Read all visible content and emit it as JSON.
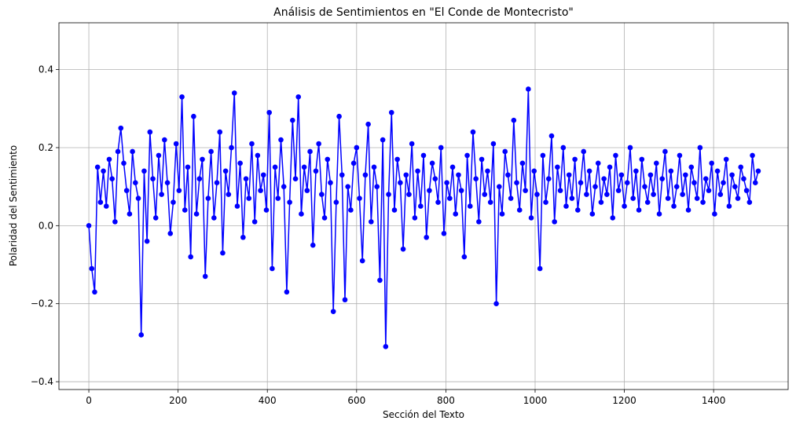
{
  "chart_data": {
    "type": "line",
    "title": "Análisis de Sentimientos en \"El Conde de Montecristo\"",
    "xlabel": "Sección del Texto",
    "ylabel": "Polaridad del Sentimiento",
    "xlim": [
      -67,
      1567
    ],
    "ylim": [
      -0.42,
      0.52
    ],
    "xticks": [
      0,
      200,
      400,
      600,
      800,
      1000,
      1200,
      1400
    ],
    "yticks": [
      -0.4,
      -0.2,
      0.0,
      0.2,
      0.4
    ],
    "ytick_labels": [
      "−0.4",
      "−0.2",
      "0.0",
      "0.2",
      "0.4"
    ],
    "grid": true,
    "series": [
      {
        "color": "#0000ff",
        "marker": "circle",
        "x_start": 0,
        "x_step": 1,
        "values": [
          0.0,
          -0.11,
          -0.17,
          0.15,
          0.06,
          0.14,
          0.05,
          0.17,
          0.12,
          0.01,
          0.19,
          0.25,
          0.16,
          0.09,
          0.03,
          0.19,
          0.11,
          0.07,
          -0.28,
          0.14,
          -0.04,
          0.24,
          0.12,
          0.02,
          0.18,
          0.08,
          0.22,
          0.11,
          -0.02,
          0.06,
          0.21,
          0.09,
          0.33,
          0.04,
          0.15,
          -0.08,
          0.28,
          0.03,
          0.12,
          0.17,
          -0.13,
          0.07,
          0.19,
          0.02,
          0.11,
          0.24,
          -0.07,
          0.14,
          0.08,
          0.2,
          0.34,
          0.05,
          0.16,
          -0.03,
          0.12,
          0.07,
          0.21,
          0.01,
          0.18,
          0.09,
          0.13,
          0.04,
          0.29,
          -0.11,
          0.15,
          0.07,
          0.22,
          0.1,
          -0.17,
          0.06,
          0.27,
          0.12,
          0.33,
          0.03,
          0.15,
          0.09,
          0.19,
          -0.05,
          0.14,
          0.21,
          0.08,
          0.02,
          0.17,
          0.11,
          -0.22,
          0.06,
          0.28,
          0.13,
          -0.19,
          0.1,
          0.04,
          0.16,
          0.2,
          0.07,
          -0.09,
          0.13,
          0.26,
          0.01,
          0.15,
          0.1,
          -0.14,
          0.22,
          -0.31,
          0.08,
          0.29,
          0.04,
          0.17,
          0.11,
          -0.06,
          0.13,
          0.08,
          0.21,
          0.02,
          0.14,
          0.05,
          0.18,
          -0.03,
          0.09,
          0.16,
          0.12,
          0.06,
          0.2,
          -0.02,
          0.11,
          0.07,
          0.15,
          0.03,
          0.13,
          0.09,
          -0.08,
          0.18,
          0.05,
          0.24,
          0.12,
          0.01,
          0.17,
          0.08,
          0.14,
          0.06,
          0.21,
          -0.2,
          0.1,
          0.03,
          0.19,
          0.13,
          0.07,
          0.27,
          0.11,
          0.04,
          0.16,
          0.09,
          0.35,
          0.02,
          0.14,
          0.08,
          -0.11,
          0.18,
          0.06,
          0.12,
          0.23,
          0.01,
          0.15,
          0.09,
          0.2,
          0.05,
          0.13,
          0.07,
          0.17,
          0.04,
          0.11,
          0.19,
          0.08,
          0.14,
          0.03,
          0.1,
          0.16,
          0.06,
          0.12,
          0.08,
          0.15,
          0.02,
          0.18,
          0.09,
          0.13,
          0.05,
          0.11,
          0.2,
          0.07,
          0.14,
          0.04,
          0.17,
          0.1,
          0.06,
          0.13,
          0.08,
          0.16,
          0.03,
          0.12,
          0.19,
          0.07,
          0.14,
          0.05,
          0.1,
          0.18,
          0.08,
          0.13,
          0.04,
          0.15,
          0.11,
          0.07,
          0.2,
          0.06,
          0.12,
          0.09,
          0.16,
          0.03,
          0.14,
          0.08,
          0.11,
          0.17,
          0.05,
          0.13,
          0.1,
          0.07,
          0.15,
          0.12,
          0.09,
          0.06,
          0.18,
          0.11,
          0.14
        ]
      }
    ]
  }
}
